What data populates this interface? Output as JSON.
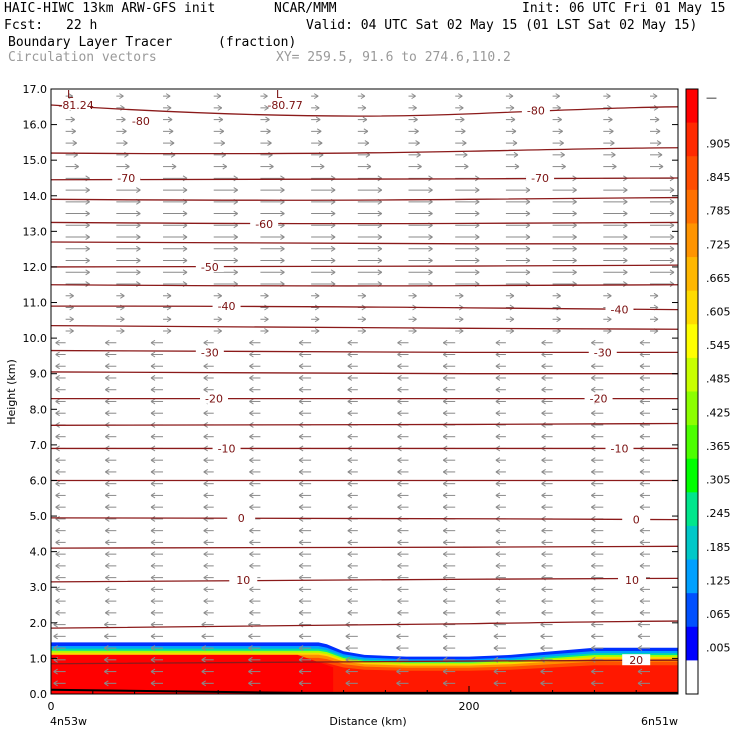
{
  "header": {
    "model": "HAIC-HIWC 13km ARW-GFS init",
    "org": "NCAR/MMM",
    "init": "Init: 06 UTC Fri 01 May 15",
    "fcst_label": "Fcst:",
    "fcst_value": "22 h",
    "valid": "Valid: 04 UTC Sat 02 May 15 (01 LST Sat 02 May 15)",
    "field1": "Boundary Layer Tracer",
    "field1_units": "(fraction)",
    "field2": "Circulation vectors",
    "xy": "XY= 259.5, 91.6 to 274.6,110.2"
  },
  "chart_data": {
    "type": "contour-cross-section",
    "xlabel": "Distance (km)",
    "ylabel": "Height (km)",
    "x_tick_labels": [
      "0",
      "200"
    ],
    "x_ticks_km": [
      0,
      200
    ],
    "xlim": [
      0,
      300
    ],
    "left_point_label": "4n53w",
    "right_point_label": "6n51w",
    "ylim": [
      0,
      17
    ],
    "y_ticks": [
      "0.0",
      "1.0",
      "2.0",
      "3.0",
      "4.0",
      "5.0",
      "6.0",
      "7.0",
      "8.0",
      "9.0",
      "10.0",
      "11.0",
      "12.0",
      "13.0",
      "14.0",
      "15.0",
      "16.0",
      "17.0"
    ],
    "color_bar_labels": [
      "—",
      ".905",
      ".845",
      ".785",
      ".725",
      ".665",
      ".605",
      ".545",
      ".485",
      ".425",
      ".365",
      ".305",
      ".245",
      ".185",
      ".125",
      ".065",
      ".005"
    ],
    "color_bar_colors": [
      "#ff0000",
      "#ff2a00",
      "#ff4d00",
      "#ff7000",
      "#ff9400",
      "#ffb700",
      "#ffdb00",
      "#ffff00",
      "#c8ff00",
      "#8cff00",
      "#4cff00",
      "#00ff00",
      "#00e68c",
      "#00c8c8",
      "#00a0ff",
      "#0050ff",
      "#0000ff",
      "#ffffff"
    ],
    "contour_labels": [
      {
        "value": "-81.24",
        "x_km": 12,
        "y_km": 16.55,
        "low": "L"
      },
      {
        "value": "-80.77",
        "x_km": 112,
        "y_km": 16.55,
        "low": "L"
      },
      {
        "value": "-80",
        "x_km": 43,
        "y_km": 16.1
      },
      {
        "value": "-80",
        "x_km": 232,
        "y_km": 16.4
      },
      {
        "value": "-70",
        "x_km": 36,
        "y_km": 14.5
      },
      {
        "value": "-70",
        "x_km": 234,
        "y_km": 14.5
      },
      {
        "value": "-60",
        "x_km": 102,
        "y_km": 13.2
      },
      {
        "value": "-50",
        "x_km": 76,
        "y_km": 12.0
      },
      {
        "value": "-40",
        "x_km": 84,
        "y_km": 10.9
      },
      {
        "value": "-40",
        "x_km": 272,
        "y_km": 10.8
      },
      {
        "value": "-30",
        "x_km": 76,
        "y_km": 9.6
      },
      {
        "value": "-30",
        "x_km": 264,
        "y_km": 9.6
      },
      {
        "value": "-20",
        "x_km": 78,
        "y_km": 8.3
      },
      {
        "value": "-20",
        "x_km": 262,
        "y_km": 8.3
      },
      {
        "value": "-10",
        "x_km": 84,
        "y_km": 6.9
      },
      {
        "value": "-10",
        "x_km": 272,
        "y_km": 6.9
      },
      {
        "value": "0",
        "x_km": 91,
        "y_km": 4.95
      },
      {
        "value": "0",
        "x_km": 280,
        "y_km": 4.9
      },
      {
        "value": "10",
        "x_km": 92,
        "y_km": 3.2
      },
      {
        "value": "10",
        "x_km": 278,
        "y_km": 3.2
      },
      {
        "value": "20",
        "x_km": 280,
        "y_km": 0.95
      }
    ],
    "boundary_layer_top_km": [
      1.45,
      1.45,
      1.45,
      1.45,
      1.45,
      1.45,
      1.45,
      1.45,
      1.45,
      1.45,
      1.45,
      1.45,
      1.4,
      1.2,
      1.1,
      1.05,
      1.05,
      1.1,
      1.2,
      1.3,
      1.3,
      1.3
    ],
    "boundary_layer_x_km": [
      0,
      15,
      30,
      45,
      60,
      75,
      90,
      105,
      115,
      120,
      125,
      128,
      132,
      140,
      150,
      170,
      200,
      220,
      240,
      260,
      280,
      300
    ]
  }
}
